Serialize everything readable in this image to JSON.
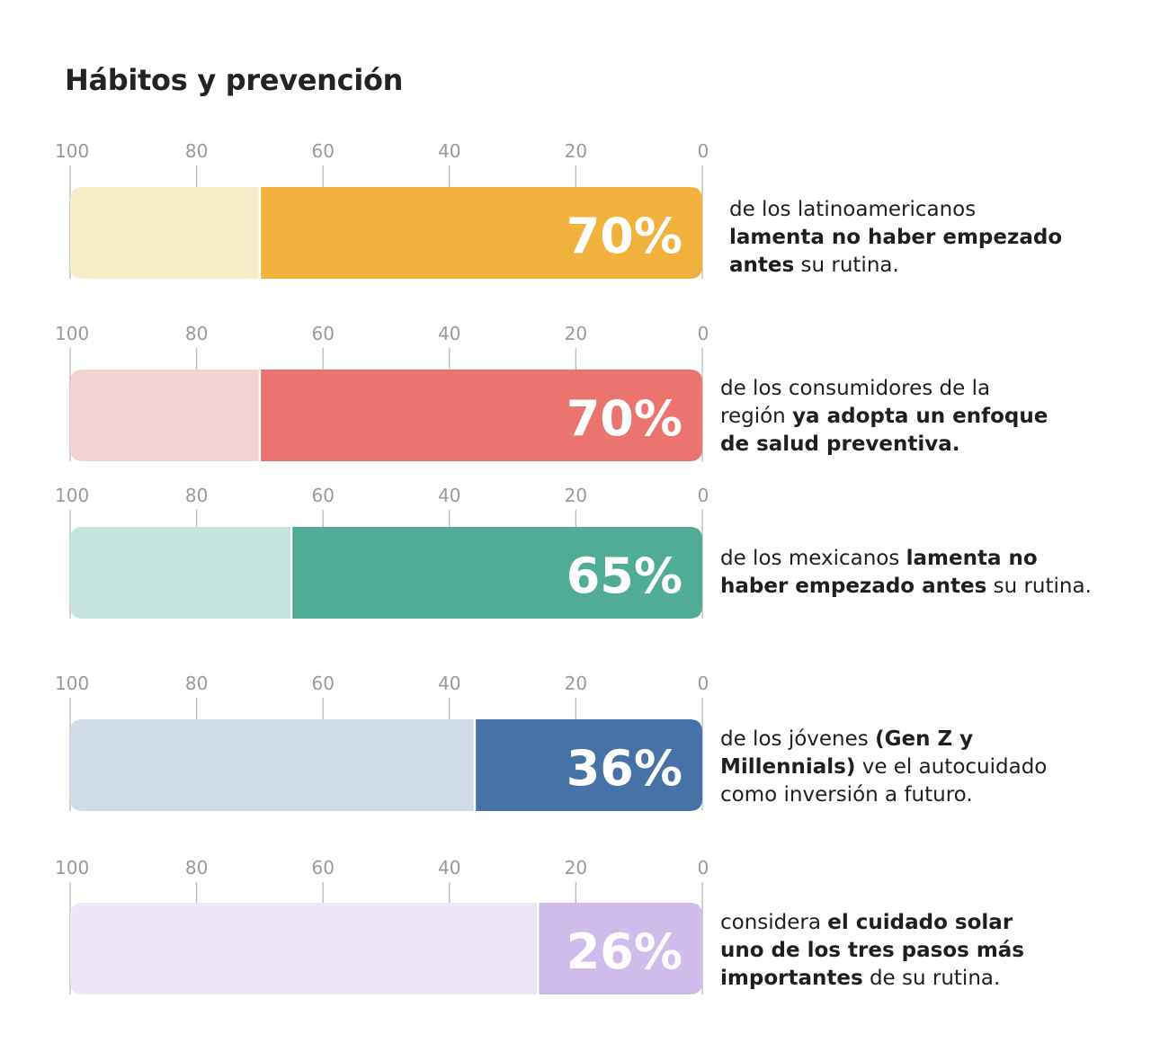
{
  "title": "Hábitos y prevención",
  "chart_data": {
    "type": "bar",
    "orientation": "horizontal",
    "direction": "right-to-left",
    "xlim": [
      100,
      0
    ],
    "ticks": [
      "100",
      "80",
      "60",
      "40",
      "20",
      "0"
    ],
    "grid": false,
    "legend": "none",
    "series": [
      {
        "value": 70,
        "label": "70%",
        "color": "#F0B23C",
        "track_color": "#F8EBC8",
        "description": [
          {
            "text": "de los latinoamericanos",
            "bold": false
          },
          {
            "text": "lamenta no haber empezado antes",
            "bold": true
          },
          {
            "text": "su rutina.",
            "bold": false
          }
        ]
      },
      {
        "value": 70,
        "label": "70%",
        "color": "#EB7470",
        "track_color": "#F2D3D2",
        "description": [
          {
            "text": "de los consumidores de la región",
            "bold": false
          },
          {
            "text": "ya adopta un enfoque de salud preventiva.",
            "bold": true
          }
        ]
      },
      {
        "value": 65,
        "label": "65%",
        "color": "#50AC97",
        "track_color": "#C5E4DE",
        "description": [
          {
            "text": "de los mexicanos",
            "bold": false
          },
          {
            "text": "lamenta no haber empezado antes",
            "bold": true
          },
          {
            "text": "su rutina.",
            "bold": false
          }
        ]
      },
      {
        "value": 36,
        "label": "36%",
        "color": "#4672A7",
        "track_color": "#CFDBE8",
        "description": [
          {
            "text": "de los jóvenes",
            "bold": false
          },
          {
            "text": "(Gen Z y Millennials)",
            "bold": true
          },
          {
            "text": "ve el autocuidado como inversión a futuro.",
            "bold": false
          }
        ]
      },
      {
        "value": 26,
        "label": "26%",
        "color": "#CFBCEA",
        "track_color": "#ECE6F7",
        "description": [
          {
            "text": "considera",
            "bold": false
          },
          {
            "text": "el cuidado solar uno de los tres pasos más importantes",
            "bold": true
          },
          {
            "text": "de su rutina.",
            "bold": false
          }
        ]
      }
    ]
  }
}
